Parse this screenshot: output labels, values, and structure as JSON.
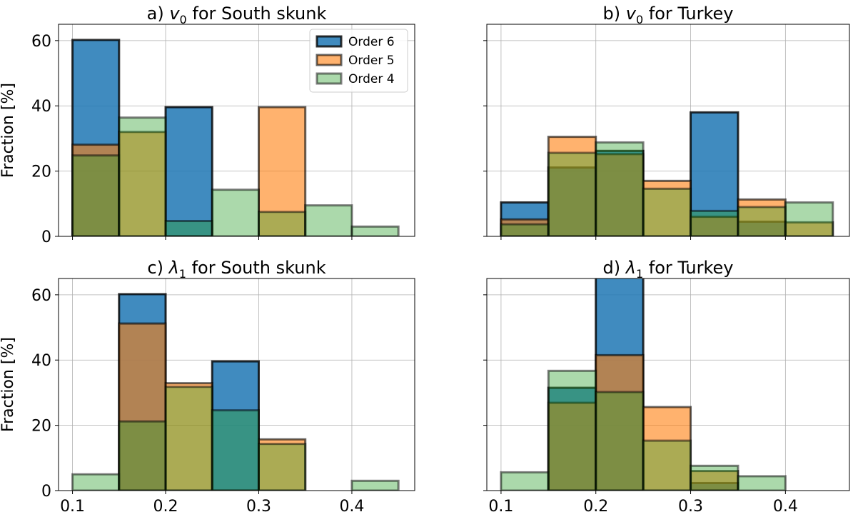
{
  "chart_data": [
    {
      "type": "bar",
      "title_prefix": "a)",
      "title_symbol": "v",
      "title_sub": "0",
      "title_suffix": "for South skunk",
      "ylabel": "Fraction [%]",
      "ylim": [
        0,
        65
      ],
      "xlim": [
        0.085,
        0.4675
      ],
      "xticks": [
        "0.1",
        "0.2",
        "0.3",
        "0.4"
      ],
      "xticks_visible": false,
      "yticks": [
        "0",
        "20",
        "40",
        "60"
      ],
      "yticks_visible": true,
      "grid": true,
      "bin_edges": [
        0.1,
        0.15,
        0.2,
        0.25,
        0.3,
        0.35,
        0.4,
        0.45
      ],
      "series": [
        {
          "name": "Order 6",
          "values": [
            60.2,
            0,
            39.6,
            0,
            0,
            0,
            0
          ]
        },
        {
          "name": "Order 5",
          "values": [
            28.1,
            32.0,
            0,
            0,
            39.6,
            0,
            0
          ]
        },
        {
          "name": "Order 4",
          "values": [
            24.8,
            36.4,
            4.7,
            14.3,
            7.5,
            9.5,
            3.0
          ]
        }
      ],
      "legend": "top-right"
    },
    {
      "type": "bar",
      "title_prefix": "b)",
      "title_symbol": "v",
      "title_sub": "0",
      "title_suffix": "for Turkey",
      "ylabel": "",
      "ylim": [
        0,
        65
      ],
      "xlim": [
        0.085,
        0.4675
      ],
      "xticks": [
        "0.1",
        "0.2",
        "0.3",
        "0.4"
      ],
      "xticks_visible": false,
      "yticks": [
        "0",
        "20",
        "40",
        "60"
      ],
      "yticks_visible": false,
      "grid": true,
      "bin_edges": [
        0.1,
        0.15,
        0.2,
        0.25,
        0.3,
        0.35,
        0.4,
        0.45
      ],
      "series": [
        {
          "name": "Order 6",
          "values": [
            10.4,
            21.1,
            26.2,
            0,
            38.0,
            4.5,
            0
          ]
        },
        {
          "name": "Order 5",
          "values": [
            5.2,
            30.5,
            25.2,
            17.0,
            6.0,
            11.3,
            4.3
          ]
        },
        {
          "name": "Order 4",
          "values": [
            3.7,
            25.6,
            28.8,
            14.6,
            7.8,
            9.0,
            10.4
          ]
        }
      ],
      "legend": "none"
    },
    {
      "type": "bar",
      "title_prefix": "c)",
      "title_symbol": "λ",
      "title_sub": "1",
      "title_suffix": "for South skunk",
      "ylabel": "Fraction [%]",
      "ylim": [
        0,
        65
      ],
      "xlim": [
        0.085,
        0.4675
      ],
      "xticks": [
        "0.1",
        "0.2",
        "0.3",
        "0.4"
      ],
      "xticks_visible": true,
      "yticks": [
        "0",
        "20",
        "40",
        "60"
      ],
      "yticks_visible": true,
      "grid": true,
      "bin_edges": [
        0.1,
        0.15,
        0.2,
        0.25,
        0.3,
        0.35,
        0.4,
        0.45
      ],
      "series": [
        {
          "name": "Order 6",
          "values": [
            0,
            60.2,
            0,
            39.6,
            0,
            0,
            0
          ]
        },
        {
          "name": "Order 5",
          "values": [
            0,
            51.2,
            32.9,
            0,
            15.7,
            0,
            0
          ]
        },
        {
          "name": "Order 4",
          "values": [
            5.0,
            21.2,
            31.8,
            24.6,
            14.3,
            0,
            3.0
          ]
        }
      ],
      "legend": "none"
    },
    {
      "type": "bar",
      "title_prefix": "d)",
      "title_symbol": "λ",
      "title_sub": "1",
      "title_suffix": "for Turkey",
      "ylabel": "",
      "ylim": [
        0,
        65
      ],
      "xlim": [
        0.085,
        0.4675
      ],
      "xticks": [
        "0.1",
        "0.2",
        "0.3",
        "0.4"
      ],
      "xticks_visible": true,
      "yticks": [
        "0",
        "20",
        "40",
        "60"
      ],
      "yticks_visible": false,
      "grid": true,
      "bin_edges": [
        0.1,
        0.15,
        0.2,
        0.25,
        0.3,
        0.35,
        0.4,
        0.45
      ],
      "series": [
        {
          "name": "Order 6",
          "values": [
            0,
            31.5,
            66.0,
            0,
            2.3,
            0,
            0
          ]
        },
        {
          "name": "Order 5",
          "values": [
            0,
            26.9,
            41.5,
            25.6,
            6.0,
            0,
            0
          ]
        },
        {
          "name": "Order 4",
          "values": [
            5.6,
            36.7,
            30.2,
            15.3,
            7.6,
            4.4,
            0
          ]
        }
      ],
      "legend": "none"
    }
  ],
  "colors": {
    "Order 6": "#1f77b4",
    "Order 5": "#ff7f0e",
    "Order 4": "#2ca02c"
  },
  "bar_alpha": [
    0.85,
    0.6,
    0.4
  ],
  "bar_edge_alpha": [
    0.8,
    0.6,
    0.5
  ]
}
